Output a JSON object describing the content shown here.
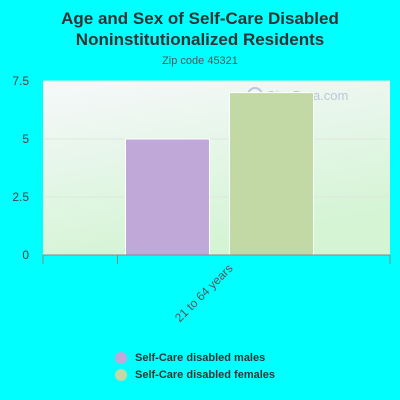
{
  "header": {
    "title_line1": "Age and Sex of Self-Care Disabled",
    "title_line2": "Noninstitutionalized Residents",
    "subtitle": "Zip code 45321"
  },
  "watermark": "City-Data.com",
  "colors": {
    "background": "#00ffff",
    "males": "#c0a8d8",
    "females": "#c2d9a6",
    "plot_top": "#f3f7f5",
    "plot_bottom": "#d2f4d2"
  },
  "chart_data": {
    "type": "bar",
    "title": "Age and Sex of Self-Care Disabled Noninstitutionalized Residents",
    "subtitle": "Zip code 45321",
    "categories": [
      "21 to 64 years"
    ],
    "series": [
      {
        "name": "Self-Care disabled males",
        "values": [
          5
        ]
      },
      {
        "name": "Self-Care disabled females",
        "values": [
          7
        ]
      }
    ],
    "ylim": [
      0,
      7.5
    ],
    "yticks": [
      0,
      2.5,
      5,
      7.5
    ],
    "ytick_labels": [
      "0",
      "2.5",
      "5",
      "7.5"
    ],
    "xlabel": "",
    "ylabel": "",
    "grid": true,
    "legend_position": "bottom"
  }
}
